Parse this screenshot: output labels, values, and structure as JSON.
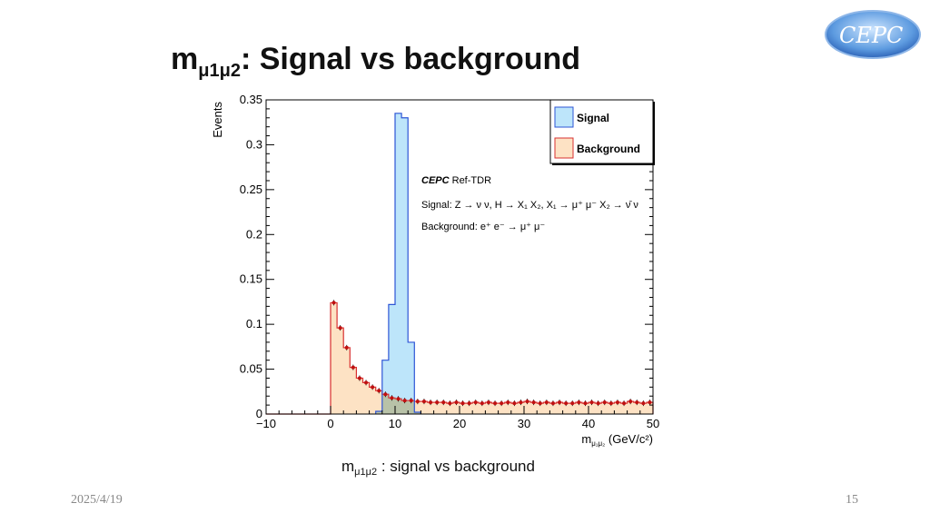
{
  "slide": {
    "title_main": "m",
    "title_sub": "μ1μ2",
    "title_rest": ": Signal vs background",
    "caption_main": "m",
    "caption_sub": "μ1μ2",
    "caption_rest": " : signal vs background",
    "date": "2025/4/19",
    "page_number": "15",
    "logo_text": "CEPC"
  },
  "chart_data": {
    "type": "bar",
    "subtype": "histogram",
    "ylabel": "Events",
    "xlabel_main": "m",
    "xlabel_sub": "μ₁μ₂",
    "xlabel_unit": " (GeV/c²)",
    "xlim": [
      -10,
      50
    ],
    "ylim": [
      0,
      0.35
    ],
    "xticks": [
      "−10",
      "0",
      "10",
      "20",
      "30",
      "40",
      "50"
    ],
    "yticks": [
      "0",
      "0.05",
      "0.1",
      "0.15",
      "0.2",
      "0.25",
      "0.3",
      "0.35"
    ],
    "bin_width": 1,
    "legend": {
      "position": "top-right",
      "entries": [
        {
          "name": "Signal",
          "fill": "#bde5fa",
          "stroke": "#2d55d6"
        },
        {
          "name": "Background",
          "fill": "#fde2c4",
          "stroke": "#d83030"
        }
      ]
    },
    "annotations": {
      "experiment": "CEPC",
      "tag": " Ref-TDR",
      "signal_line": "Signal: Z → ν ν, H → X₁ X₂, X₁ → μ⁺ μ⁻ X₂ → ν̄ ν",
      "background_line": "Background:  e⁺ e⁻ → μ⁺ μ⁻"
    },
    "series": [
      {
        "name": "Signal",
        "bin_edges_start": 7,
        "values": [
          0.003,
          0.06,
          0.122,
          0.335,
          0.33,
          0.08,
          0.002
        ]
      },
      {
        "name": "Background",
        "bin_edges_start": 0,
        "values": [
          0.124,
          0.096,
          0.074,
          0.052,
          0.04,
          0.035,
          0.03,
          0.026,
          0.022,
          0.018,
          0.017,
          0.015,
          0.015,
          0.014,
          0.014,
          0.013,
          0.013,
          0.013,
          0.012,
          0.013,
          0.012,
          0.012,
          0.013,
          0.012,
          0.013,
          0.012,
          0.012,
          0.013,
          0.012,
          0.013,
          0.014,
          0.013,
          0.012,
          0.013,
          0.012,
          0.013,
          0.012,
          0.012,
          0.013,
          0.012,
          0.013,
          0.012,
          0.013,
          0.012,
          0.013,
          0.012,
          0.014,
          0.013,
          0.012,
          0.013
        ]
      }
    ]
  }
}
